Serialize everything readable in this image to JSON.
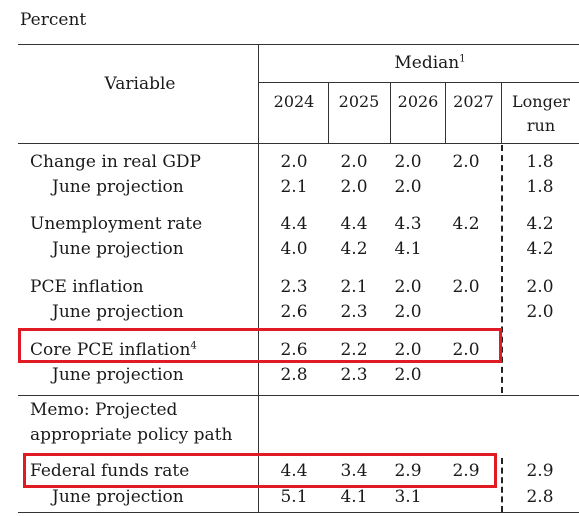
{
  "unit_label": "Percent",
  "header": {
    "variable_label": "Variable",
    "group_label": "Median",
    "group_footnote": "1",
    "columns": [
      "2024",
      "2025",
      "2026",
      "2027"
    ],
    "longer_run_line1": "Longer",
    "longer_run_line2": "run"
  },
  "rows": {
    "gdp": {
      "label": "Change in real GDP",
      "v2024": "2.0",
      "v2025": "2.0",
      "v2026": "2.0",
      "v2027": "2.0",
      "lr": "1.8"
    },
    "gdp_june": {
      "label": "June projection",
      "v2024": "2.1",
      "v2025": "2.0",
      "v2026": "2.0",
      "v2027": "",
      "lr": "1.8"
    },
    "unemp": {
      "label": "Unemployment rate",
      "v2024": "4.4",
      "v2025": "4.4",
      "v2026": "4.3",
      "v2027": "4.2",
      "lr": "4.2"
    },
    "unemp_june": {
      "label": "June projection",
      "v2024": "4.0",
      "v2025": "4.2",
      "v2026": "4.1",
      "v2027": "",
      "lr": "4.2"
    },
    "pce": {
      "label": "PCE inflation",
      "v2024": "2.3",
      "v2025": "2.1",
      "v2026": "2.0",
      "v2027": "2.0",
      "lr": "2.0"
    },
    "pce_june": {
      "label": "June projection",
      "v2024": "2.6",
      "v2025": "2.3",
      "v2026": "2.0",
      "v2027": "",
      "lr": "2.0"
    },
    "core": {
      "label": "Core PCE inflation",
      "footnote": "4",
      "v2024": "2.6",
      "v2025": "2.2",
      "v2026": "2.0",
      "v2027": "2.0",
      "lr": ""
    },
    "core_june": {
      "label": "June projection",
      "v2024": "2.8",
      "v2025": "2.3",
      "v2026": "2.0",
      "v2027": "",
      "lr": ""
    },
    "memo_line1": "Memo: Projected",
    "memo_line2": "appropriate policy path",
    "ffr": {
      "label": "Federal funds rate",
      "v2024": "4.4",
      "v2025": "3.4",
      "v2026": "2.9",
      "v2027": "2.9",
      "lr": "2.9"
    },
    "ffr_june": {
      "label": "June projection",
      "v2024": "5.1",
      "v2025": "4.1",
      "v2026": "3.1",
      "v2027": "",
      "lr": "2.8"
    }
  },
  "colors": {
    "highlight": "#e01b24",
    "rule": "#333333"
  }
}
